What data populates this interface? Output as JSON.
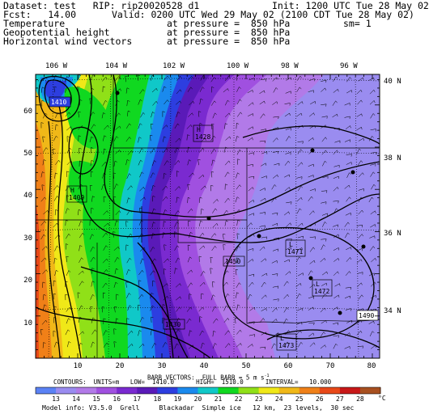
{
  "header": {
    "dataset_label": "Dataset: test",
    "rip_label": "RIP: rip20020528 d1",
    "init": "Init: 1200 UTC Tue 28 May 02",
    "fcst_label": "Fcst:",
    "fcst_value": "14.00",
    "valid": "Valid: 0200 UTC Wed 29 May 02 (2100 CDT Tue 28 May 02)",
    "field1_name": "Temperature",
    "field1_level": "at pressure =  850 hPa",
    "field1_sm": "sm= 1",
    "field2_name": "Geopotential height",
    "field2_level": "at pressure =  850 hPa",
    "field3_name": "Horizontal wind vectors",
    "field3_level": "at pressure =  850 hPa"
  },
  "map": {
    "lon_labels": [
      "106 W",
      "104 W",
      "102 W",
      "100 W",
      "98 W",
      "96 W"
    ],
    "lat_labels": [
      "40 N",
      "38 N",
      "36 N",
      "34 N"
    ],
    "y_ticks": [
      "60",
      "50",
      "40",
      "30",
      "20",
      "10"
    ],
    "x_ticks": [
      "10",
      "20",
      "30",
      "40",
      "50",
      "60",
      "70",
      "80"
    ],
    "highs": [
      {
        "letter": "H",
        "value": "1428"
      },
      {
        "letter": "H",
        "value": "1409"
      }
    ],
    "lows": [
      {
        "letter": "L",
        "value": "1471"
      },
      {
        "letter": "L",
        "value": "1472"
      },
      {
        "letter": "L",
        "value": "1473"
      }
    ],
    "labels": [
      {
        "value": "1410"
      },
      {
        "value": "1450"
      },
      {
        "value": "1430"
      },
      {
        "value": "1490"
      }
    ]
  },
  "footer": {
    "barb_vectors": "BARB VECTORS:  FULL BARB = 5 m s",
    "barb_exp": "-1",
    "contours": "CONTOURS:  UNITS=m   LOW=  1410.0      HIGH=  1510.0      INTERVAL=   10.000",
    "colorbar_values": [
      "13",
      "14",
      "15",
      "16",
      "17",
      "18",
      "19",
      "20",
      "21",
      "22",
      "23",
      "24",
      "25",
      "26",
      "27",
      "28"
    ],
    "colorbar_unit": "°C",
    "colorbar_colors": [
      "#5b82f5",
      "#9a8cf0",
      "#b27ae8",
      "#a050e0",
      "#7a2ad0",
      "#5a1ab8",
      "#2d3ee0",
      "#1a8aee",
      "#10c8c8",
      "#10d820",
      "#90e018",
      "#f0e818",
      "#f0b818",
      "#f08018",
      "#e84818",
      "#c81818",
      "#a85020"
    ],
    "model_info": "Model info: V3.5.0  Grell     Blackadar  Simple ice   12 km,  23 levels,  30 sec"
  }
}
